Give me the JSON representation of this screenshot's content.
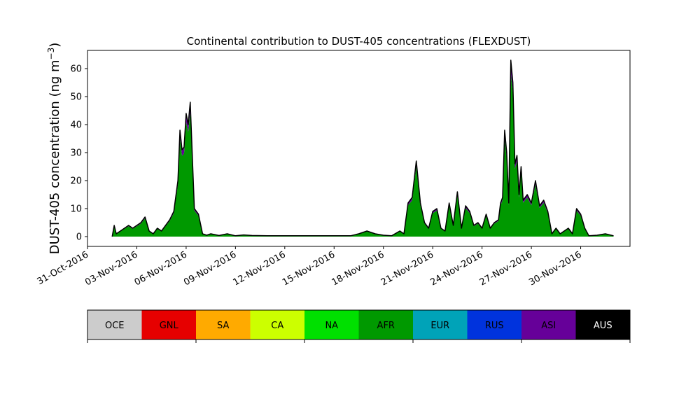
{
  "chart_data": {
    "type": "area",
    "title": "Continental contribution to DUST-405 concentrations (FLEXDUST)",
    "ylabel": "DUST-405 concentration (ng m",
    "ylabel_unit_exponent": "−3",
    "ylabel_suffix": ")",
    "xlabel": "",
    "xlim": [
      "2016-10-31",
      "2016-12-03"
    ],
    "ylim": [
      -3.5,
      66.5
    ],
    "grid": false,
    "legend_placement": "bottom colorbar",
    "x_tick_labels": [
      "31-Oct-2016",
      "03-Nov-2016",
      "06-Nov-2016",
      "09-Nov-2016",
      "12-Nov-2016",
      "15-Nov-2016",
      "18-Nov-2016",
      "21-Nov-2016",
      "24-Nov-2016",
      "27-Nov-2016",
      "30-Nov-2016"
    ],
    "x_tick_dates": [
      "2016-10-31",
      "2016-11-03",
      "2016-11-06",
      "2016-11-09",
      "2016-11-12",
      "2016-11-15",
      "2016-11-18",
      "2016-11-21",
      "2016-11-24",
      "2016-11-27",
      "2016-11-30"
    ],
    "y_ticks": [
      0,
      10,
      20,
      30,
      40,
      50,
      60
    ],
    "categories": [
      "OCE",
      "GNL",
      "SA",
      "CA",
      "NA",
      "AFR",
      "EUR",
      "RUS",
      "ASI",
      "AUS"
    ],
    "category_colors": [
      "#cccccc",
      "#e60000",
      "#ffaa00",
      "#ccff00",
      "#00e000",
      "#009900",
      "#00a3b8",
      "#0033dd",
      "#660099",
      "#000000"
    ],
    "category_text_colors": [
      "#000000",
      "#000000",
      "#000000",
      "#000000",
      "#000000",
      "#000000",
      "#000000",
      "#000000",
      "#000000",
      "#ffffff"
    ],
    "total_series": {
      "name": "AUS",
      "x": [
        "2016-11-01 12:00",
        "2016-11-01 15:00",
        "2016-11-01 18:00",
        "2016-11-02 00:00",
        "2016-11-02 06:00",
        "2016-11-02 12:00",
        "2016-11-02 18:00",
        "2016-11-03 00:00",
        "2016-11-03 06:00",
        "2016-11-03 12:00",
        "2016-11-03 18:00",
        "2016-11-04 00:00",
        "2016-11-04 06:00",
        "2016-11-04 12:00",
        "2016-11-04 18:00",
        "2016-11-05 00:00",
        "2016-11-05 06:00",
        "2016-11-05 12:00",
        "2016-11-05 15:00",
        "2016-11-05 18:00",
        "2016-11-05 21:00",
        "2016-11-06 00:00",
        "2016-11-06 03:00",
        "2016-11-06 06:00",
        "2016-11-06 12:00",
        "2016-11-06 18:00",
        "2016-11-07 00:00",
        "2016-11-07 06:00",
        "2016-11-07 12:00",
        "2016-11-08 00:00",
        "2016-11-08 12:00",
        "2016-11-09 00:00",
        "2016-11-09 12:00",
        "2016-11-10 00:00",
        "2016-11-11 00:00",
        "2016-11-12 00:00",
        "2016-11-13 00:00",
        "2016-11-14 00:00",
        "2016-11-15 00:00",
        "2016-11-16 00:00",
        "2016-11-16 12:00",
        "2016-11-17 00:00",
        "2016-11-17 12:00",
        "2016-11-18 00:00",
        "2016-11-18 12:00",
        "2016-11-19 00:00",
        "2016-11-19 06:00",
        "2016-11-19 12:00",
        "2016-11-19 18:00",
        "2016-11-20 00:00",
        "2016-11-20 06:00",
        "2016-11-20 12:00",
        "2016-11-20 18:00",
        "2016-11-21 00:00",
        "2016-11-21 06:00",
        "2016-11-21 12:00",
        "2016-11-21 18:00",
        "2016-11-22 00:00",
        "2016-11-22 06:00",
        "2016-11-22 12:00",
        "2016-11-22 18:00",
        "2016-11-23 00:00",
        "2016-11-23 06:00",
        "2016-11-23 12:00",
        "2016-11-23 18:00",
        "2016-11-24 00:00",
        "2016-11-24 06:00",
        "2016-11-24 12:00",
        "2016-11-24 18:00",
        "2016-11-25 00:00",
        "2016-11-25 03:00",
        "2016-11-25 06:00",
        "2016-11-25 09:00",
        "2016-11-25 12:00",
        "2016-11-25 15:00",
        "2016-11-25 18:00",
        "2016-11-25 21:00",
        "2016-11-26 00:00",
        "2016-11-26 03:00",
        "2016-11-26 06:00",
        "2016-11-26 09:00",
        "2016-11-26 12:00",
        "2016-11-26 18:00",
        "2016-11-27 00:00",
        "2016-11-27 06:00",
        "2016-11-27 12:00",
        "2016-11-27 18:00",
        "2016-11-28 00:00",
        "2016-11-28 06:00",
        "2016-11-28 12:00",
        "2016-11-28 18:00",
        "2016-11-29 00:00",
        "2016-11-29 06:00",
        "2016-11-29 12:00",
        "2016-11-29 18:00",
        "2016-11-30 00:00",
        "2016-11-30 06:00",
        "2016-11-30 12:00",
        "2016-12-01 00:00",
        "2016-12-01 12:00",
        "2016-12-02 00:00"
      ],
      "values": [
        0,
        4,
        1,
        2,
        3,
        4,
        3,
        4,
        5,
        7,
        2,
        1,
        3,
        2,
        4,
        6,
        9,
        20,
        38,
        31,
        32,
        44,
        40,
        48,
        10,
        8,
        1,
        0.5,
        1,
        0.4,
        1,
        0.3,
        0.6,
        0.4,
        0.3,
        0.3,
        0.3,
        0.3,
        0.3,
        0.3,
        1,
        2,
        1,
        0.5,
        0.3,
        2,
        1,
        12,
        14,
        27,
        12,
        5,
        3,
        9,
        10,
        3,
        2,
        12,
        4,
        16,
        3,
        11,
        9,
        4,
        5,
        3,
        8,
        3,
        5,
        6,
        12,
        14,
        38,
        30,
        12,
        63,
        55,
        26,
        29,
        15,
        25,
        13,
        15,
        12,
        20,
        11,
        13,
        9,
        1,
        3,
        1,
        2,
        3,
        1,
        10,
        8,
        3,
        0.3,
        0.5,
        1,
        0.3
      ]
    },
    "stacked_layers": [
      {
        "name": "AFR",
        "share_of_total": 0.93
      },
      {
        "name": "ASI",
        "share_of_total": 0.06
      }
    ]
  }
}
